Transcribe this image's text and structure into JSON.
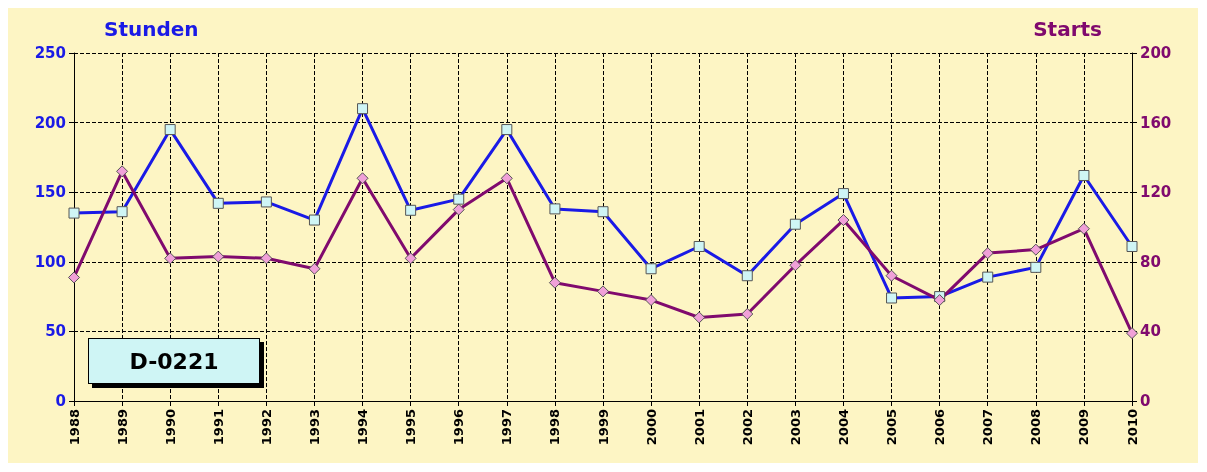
{
  "chart_data": {
    "type": "line",
    "ylabel": "Stunden",
    "y2label": "Starts",
    "annotations": [
      "D-0221"
    ],
    "categories": [
      "1988",
      "1989",
      "1990",
      "1991",
      "1992",
      "1993",
      "1994",
      "1995",
      "1996",
      "1997",
      "1998",
      "1999",
      "2000",
      "2001",
      "2002",
      "2003",
      "2004",
      "2005",
      "2006",
      "2007",
      "2008",
      "2009",
      "2010"
    ],
    "series": [
      {
        "color": "#1a1ae6",
        "marker": "square",
        "values": [
          135,
          136,
          195,
          142,
          143,
          130,
          210,
          137,
          145,
          195,
          138,
          136,
          95,
          111,
          90,
          127,
          149,
          74,
          75,
          89,
          96,
          162,
          111
        ]
      },
      {
        "color": "#800a6e",
        "marker": "diamond",
        "axis": "y2",
        "values": [
          71,
          132,
          82,
          83,
          82,
          76,
          128,
          82,
          110,
          128,
          68,
          63,
          58,
          48,
          50,
          78,
          104,
          72,
          58,
          85,
          87,
          99,
          39
        ]
      }
    ],
    "ylim": [
      0,
      250
    ],
    "yticks": [
      0,
      50,
      100,
      150,
      200,
      250
    ],
    "y2lim": [
      0,
      200
    ],
    "y2ticks": [
      0,
      40,
      80,
      120,
      160,
      200
    ],
    "grid": true,
    "line_style": "solid"
  }
}
